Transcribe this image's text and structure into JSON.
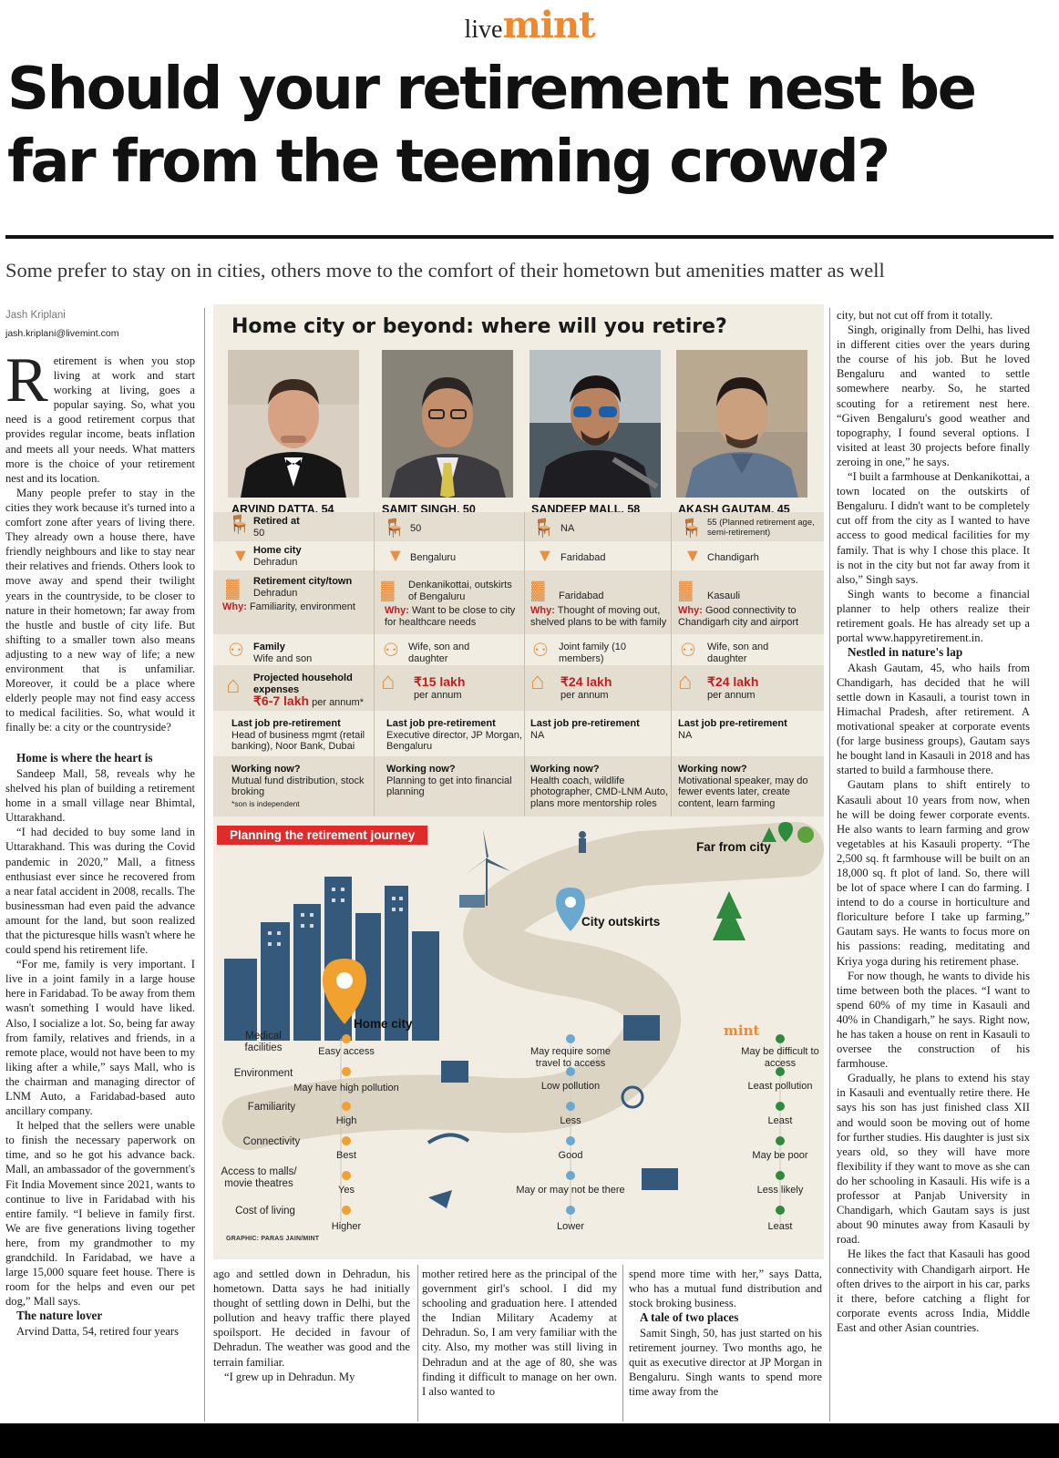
{
  "masthead": {
    "live": "live",
    "mint": "mint"
  },
  "headline": "Should your retirement nest be far from the teeming crowd?",
  "dek": "Some prefer to stay on in cities, others move to the comfort of their hometown but amenities matter as well",
  "byline": {
    "name": "Jash Kriplani",
    "email": "jash.kriplani@livemint.com"
  },
  "col1": {
    "dropcap": "R",
    "p1": "etirement is when you stop living at work and start working at living, goes a popular saying. So, what you need is a good retirement corpus that provides regular income, beats inflation and meets all your needs. What matters more is the choice of your retirement nest and its location.",
    "p2": "Many people prefer to stay in the cities they work because it's turned into a comfort zone after years of living there. They already own a house there, have friendly neighbours and like to stay near their relatives and friends. Others look to move away and spend their twilight years in the countryside, to be closer to nature in their hometown; far away from the hustle and bustle of city life. But shifting to a smaller town also means adjusting to a new way of life; a new environment that is unfamiliar. Moreover, it could be a place where elderly people may not find easy access to medical facilities. So, what would it finally be: a city or the countryside?",
    "h1": "Home is where the heart is",
    "p3": "Sandeep Mall, 58, reveals why he shelved his plan of building a retirement home in a small village near Bhimtal, Uttarakhand.",
    "p4": "“I had decided to buy some land in Uttarakhand. This was during the Covid pandemic in 2020,” Mall, a fitness enthusiast ever since he recovered from a near fatal accident in 2008, recalls. The businessman had even paid the advance amount for the land, but soon realized that the picturesque hills wasn't where he could spend his retirement life.",
    "p5": "“For me, family is very important. I live in a joint family in a large house here in Faridabad. To be away from them wasn't something I would have liked. Also, I socialize a lot. So, being far away from family, relatives and friends, in a remote place, would not have been to my liking after a while,” says Mall, who is the chairman and managing director of LNM Auto, a Faridabad-based auto ancillary company.",
    "p6": "It helped that the sellers were unable to finish the necessary paperwork on time, and so he got his advance back. Mall, an ambassador of the government's Fit India Movement since 2021, wants to continue to live in Faridabad with his entire family. “I believe in family first. We are five generations living together here, from my grandmother to my grandchild. In Faridabad, we have a large 15,000 square feet house. There is room for the helps and even our pet dog,” Mall says.",
    "h2": "The nature lover",
    "p7": "Arvind Datta, 54, retired four years"
  },
  "col2": {
    "p1": "ago and settled down in Dehradun, his hometown. Datta says he had initially thought of settling down in Delhi, but the pollution and heavy traffic there played spoilsport. He decided in favour of Dehradun. The weather was good and the terrain familiar.",
    "p2": "“I grew up in Dehradun. My"
  },
  "col3": {
    "p1": "mother retired here as the principal of the government girl's school. I did my schooling and graduation here. I attended the Indian Military Academy at Dehradun. So, I am very familiar with the city. Also, my mother was still living in Dehradun and at the age of 80, she was finding it difficult to manage on her own. I also wanted to"
  },
  "col4": {
    "p1": "spend more time with her,” says Datta, who has a mutual fund distribution and stock broking business.",
    "h1": "A tale of two places",
    "p2": "Samit Singh, 50, has just started on his retirement journey. Two months ago, he quit as executive director at JP Morgan in Bengaluru. Singh wants to spend more time away from the"
  },
  "col5": {
    "p1": "city, but not cut off from it totally.",
    "p2": "Singh, originally from Delhi, has lived in different cities over the years during the course of his job. But he loved Bengaluru and wanted to settle somewhere nearby. So, he started scouting for a retirement nest here. “Given Bengaluru's good weather and topography, I found several options. I visited at least 30 projects before finally zeroing in one,” he says.",
    "p3": "“I built a farmhouse at Denkanikottai, a town located on the outskirts of Bengaluru. I didn't want to be completely cut off from the city as I wanted to have access to good medical facilities for my family. That is why I chose this place. It is not in the city but not far away from it also,” Singh says.",
    "p4": "Singh wants to become a financial planner to help others realize their retirement goals. He has already set up a portal www.happyretirement.in.",
    "h1": "Nestled in nature's lap",
    "p5": "Akash Gautam, 45, who hails from Chandigarh, has decided that he will settle down in Kasauli, a tourist town in Himachal Pradesh, after retirement. A motivational speaker at corporate events (for large business groups), Gautam says he bought land in Kasauli in 2018 and has started to build a farmhouse there.",
    "p6": "Gautam plans to shift entirely to Kasauli about 10 years from now, when he will be doing fewer corporate events. He also wants to learn farming and grow vegetables at his Kasauli property. “The 2,500 sq. ft farmhouse will be built on an 18,000 sq. ft plot of land. So, there will be lot of space where I can do farming. I intend to do a course in horticulture and floriculture before I take up farming,” Gautam says. He wants to focus more on his passions: reading, meditating and Kriya yoga during his retirement phase.",
    "p7": "For now though, he wants to divide his time between both the places. “I want to spend 60% of my time in Kasauli and 40% in Chandigarh,” he says. Right now, he has taken a house on rent in Kasauli to oversee the construction of his farmhouse.",
    "p8": "Gradually, he plans to extend his stay in Kasauli and eventually retire there. He says his son has just finished class XII and would soon be moving out of home for further studies. His daughter is just six years old, so they will have more flexibility if they want to move as she can do her schooling in Kasauli. His wife is a professor at Panjab University in Chandigarh, which Gautam says is just about 90 minutes away from Kasauli by road.",
    "p9": "He likes the fact that Kasauli has good connectivity with Chandigarh airport. He often drives to the airport in his car, parks it there, before catching a flight for corporate events across India, Middle East and other Asian countries."
  },
  "infographic": {
    "title": "Home city or beyond: where will you retire?",
    "people": [
      {
        "name": "ARVIND DATTA, 54",
        "retired_label": "Retired at",
        "retired": "50",
        "home_label": "Home city",
        "home": "Dehradun",
        "rc_label": "Retirement city/town",
        "rc": "Dehradun",
        "why_label": "Why:",
        "why": "Familiarity, environment",
        "family_label": "Family",
        "family": "Wife and son",
        "exp_label": "Projected household expenses",
        "exp": "₹6-7 lakh",
        "exp_unit": "per annum*",
        "job_label": "Last job pre-retirement",
        "job": "Head of business mgmt (retail banking), Noor Bank, Dubai",
        "now_label": "Working now?",
        "now": "Mutual fund distribution, stock broking",
        "note": "*son is independent"
      },
      {
        "name": "SAMIT SINGH, 50",
        "retired": "50",
        "home": "Bengaluru",
        "rc": "Denkanikottai, outskirts of Bengaluru",
        "why_label": "Why:",
        "why": "Want to be close to city for healthcare needs",
        "family": "Wife, son and daughter",
        "exp": "₹15 lakh",
        "exp_unit": "per annum",
        "job_label": "Last job pre-retirement",
        "job": "Executive director, JP Morgan, Bengaluru",
        "now_label": "Working now?",
        "now": "Planning to get into financial planning"
      },
      {
        "name": "SANDEEP MALL, 58",
        "retired": "NA",
        "home": "Faridabad",
        "rc": "Faridabad",
        "why_label": "Why:",
        "why": "Thought of moving out, shelved plans to be with family",
        "family": "Joint family (10 members)",
        "exp": "₹24 lakh",
        "exp_unit": "per annum",
        "job_label": "Last job pre-retirement",
        "job": "NA",
        "now_label": "Working now?",
        "now": "Health coach, wildlife photographer, CMD-LNM Auto, plans more mentorship roles"
      },
      {
        "name": "AKASH GAUTAM, 45",
        "retired": "55 (Planned retirement age, semi-retirement)",
        "home": "Chandigarh",
        "rc": "Kasauli",
        "why_label": "Why:",
        "why": "Good connectivity to Chandigarh city and airport",
        "family": "Wife, son and daughter",
        "exp": "₹24 lakh",
        "exp_unit": "per annum",
        "job_label": "Last job pre-retirement",
        "job": "NA",
        "now_label": "Working now?",
        "now": "Motivational speaker, may do fewer events later, create content, learn farming"
      }
    ],
    "planning": {
      "title": "Planning the retirement journey",
      "places": {
        "home": "Home city",
        "outskirts": "City outskirts",
        "far": "Far from city"
      },
      "criteria": [
        "Medical facilities",
        "Environment",
        "Familiarity",
        "Connectivity",
        "Access to malls/ movie theatres",
        "Cost of living"
      ],
      "home_vals": [
        "Easy access",
        "May have high pollution",
        "High",
        "Best",
        "Yes",
        "Higher"
      ],
      "outskirts_vals": [
        "May require some travel to access",
        "Low pollution",
        "Less",
        "Good",
        "May or may not be there",
        "Lower"
      ],
      "far_vals": [
        "May be difficult to access",
        "Least pollution",
        "Least",
        "May be poor",
        "Less likely",
        "Least"
      ],
      "credit": "GRAPHIC: PARAS JAIN/MINT",
      "mint": "mint"
    }
  },
  "colors": {
    "accent": "#f0892e",
    "red": "#e02b2b",
    "bg": "#f1ede3",
    "band": "#e4ded1"
  }
}
